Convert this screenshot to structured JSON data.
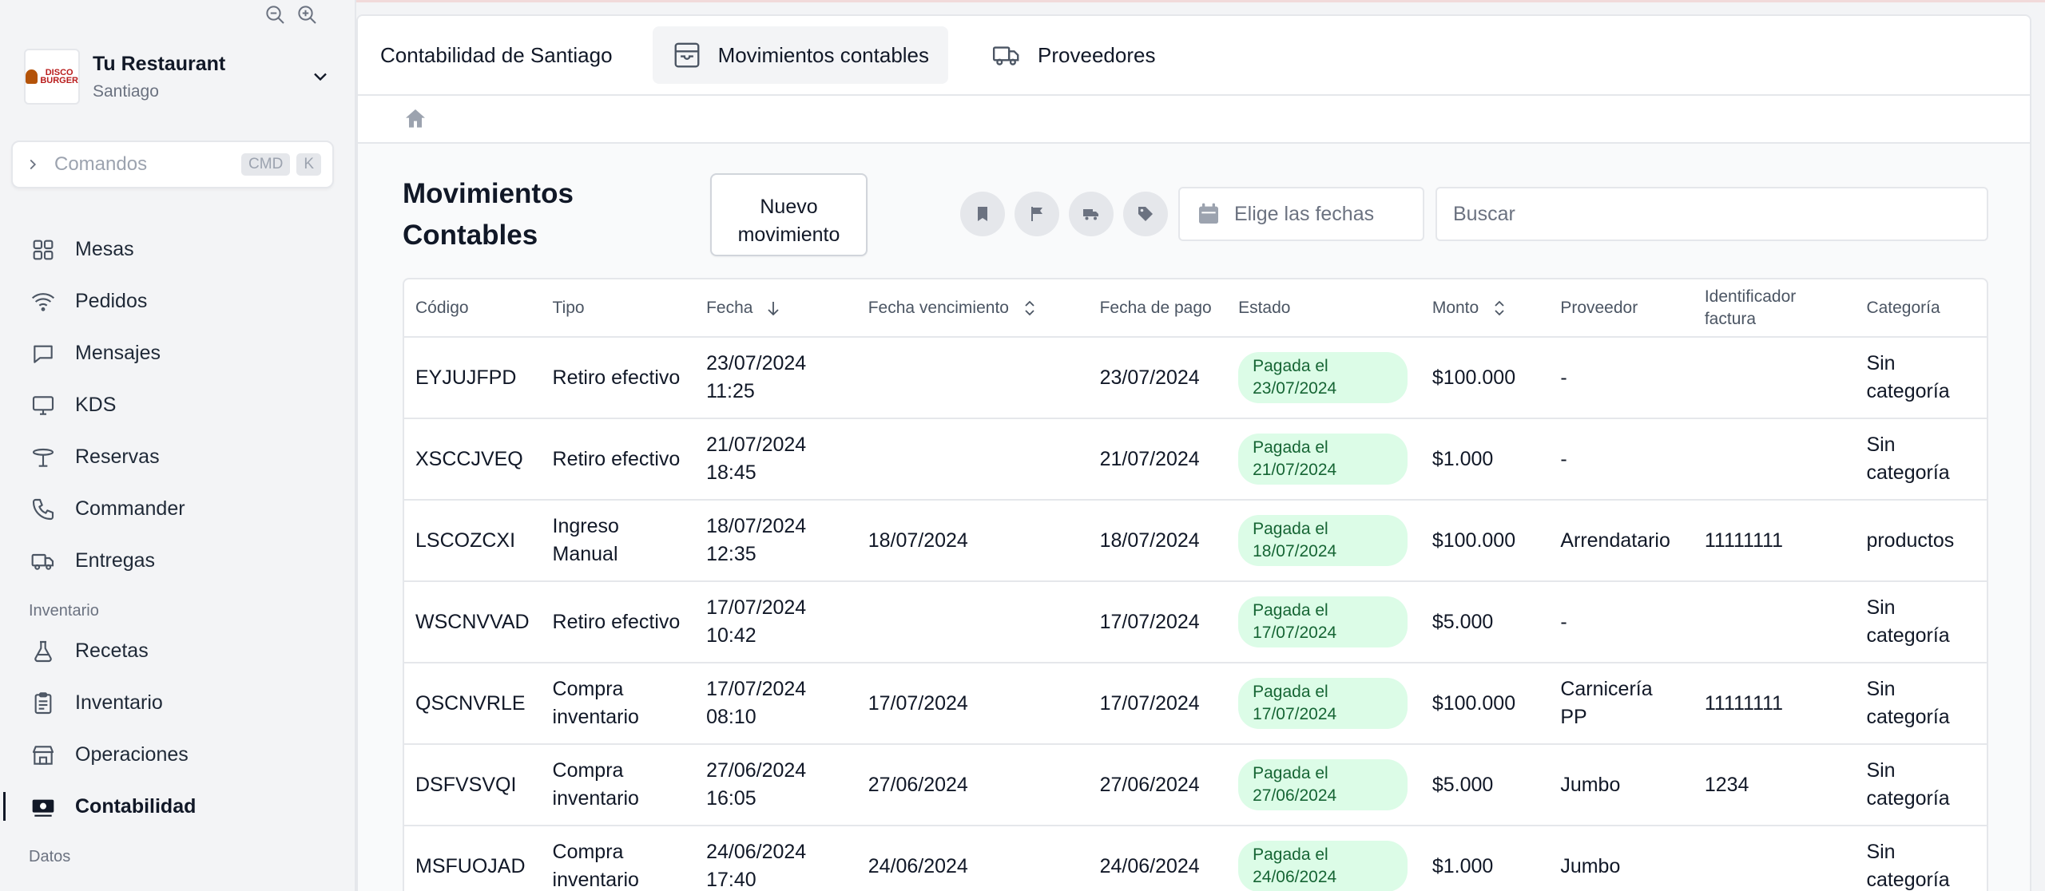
{
  "restaurant": {
    "name": "Tu Restaurant",
    "location": "Santiago",
    "logo_text": "DISCO BURGER"
  },
  "command": {
    "placeholder": "Comandos",
    "key1": "CMD",
    "key2": "K"
  },
  "nav": [
    {
      "label": "Mesas",
      "icon": "grid-icon"
    },
    {
      "label": "Pedidos",
      "icon": "wifi-icon"
    },
    {
      "label": "Mensajes",
      "icon": "chat-icon"
    },
    {
      "label": "KDS",
      "icon": "monitor-icon"
    },
    {
      "label": "Reservas",
      "icon": "table-icon"
    },
    {
      "label": "Commander",
      "icon": "phone-icon"
    },
    {
      "label": "Entregas",
      "icon": "truck-icon"
    }
  ],
  "inventory_section": "Inventario",
  "inventory_nav": [
    {
      "label": "Recetas",
      "icon": "flask-icon"
    },
    {
      "label": "Inventario",
      "icon": "clipboard-icon"
    },
    {
      "label": "Operaciones",
      "icon": "store-icon"
    },
    {
      "label": "Contabilidad",
      "icon": "cash-icon"
    }
  ],
  "data_section": "Datos",
  "tabs": {
    "title": "Contabilidad de Santiago",
    "movimientos": "Movimientos contables",
    "proveedores": "Proveedores"
  },
  "page": {
    "title": "Movimientos Contables",
    "new_button": "Nuevo movimiento",
    "date_placeholder": "Elige las fechas",
    "search_placeholder": "Buscar"
  },
  "table": {
    "headers": {
      "codigo": "Código",
      "tipo": "Tipo",
      "fecha": "Fecha",
      "vencimiento": "Fecha vencimiento",
      "pago": "Fecha de pago",
      "estado": "Estado",
      "monto": "Monto",
      "proveedor": "Proveedor",
      "factura": "Identificador factura",
      "categoria": "Categoría"
    },
    "rows": [
      {
        "codigo": "EYJUJFPD",
        "tipo": "Retiro efectivo",
        "fecha": "23/07/2024 11:25",
        "vencimiento": "",
        "pago": "23/07/2024",
        "estado": "Pagada el 23/07/2024",
        "monto": "$100.000",
        "proveedor": "-",
        "factura": "",
        "categoria": "Sin categoría"
      },
      {
        "codigo": "XSCCJVEQ",
        "tipo": "Retiro efectivo",
        "fecha": "21/07/2024 18:45",
        "vencimiento": "",
        "pago": "21/07/2024",
        "estado": "Pagada el 21/07/2024",
        "monto": "$1.000",
        "proveedor": "-",
        "factura": "",
        "categoria": "Sin categoría"
      },
      {
        "codigo": "LSCOZCXI",
        "tipo": "Ingreso Manual",
        "fecha": "18/07/2024 12:35",
        "vencimiento": "18/07/2024",
        "pago": "18/07/2024",
        "estado": "Pagada el 18/07/2024",
        "monto": "$100.000",
        "proveedor": "Arrendatario",
        "factura": "11111111",
        "categoria": "productos"
      },
      {
        "codigo": "WSCNVVAD",
        "tipo": "Retiro efectivo",
        "fecha": "17/07/2024 10:42",
        "vencimiento": "",
        "pago": "17/07/2024",
        "estado": "Pagada el 17/07/2024",
        "monto": "$5.000",
        "proveedor": "-",
        "factura": "",
        "categoria": "Sin categoría"
      },
      {
        "codigo": "QSCNVRLE",
        "tipo": "Compra inventario",
        "fecha": "17/07/2024 08:10",
        "vencimiento": "17/07/2024",
        "pago": "17/07/2024",
        "estado": "Pagada el 17/07/2024",
        "monto": "$100.000",
        "proveedor": "Carnicería PP",
        "factura": "11111111",
        "categoria": "Sin categoría"
      },
      {
        "codigo": "DSFVSVQI",
        "tipo": "Compra inventario",
        "fecha": "27/06/2024 16:05",
        "vencimiento": "27/06/2024",
        "pago": "27/06/2024",
        "estado": "Pagada el 27/06/2024",
        "monto": "$5.000",
        "proveedor": "Jumbo",
        "factura": "1234",
        "categoria": "Sin categoría"
      },
      {
        "codigo": "MSFUOJAD",
        "tipo": "Compra inventario",
        "fecha": "24/06/2024 17:40",
        "vencimiento": "24/06/2024",
        "pago": "24/06/2024",
        "estado": "Pagada el 24/06/2024",
        "monto": "$1.000",
        "proveedor": "Jumbo",
        "factura": "",
        "categoria": "Sin categoría"
      }
    ]
  }
}
